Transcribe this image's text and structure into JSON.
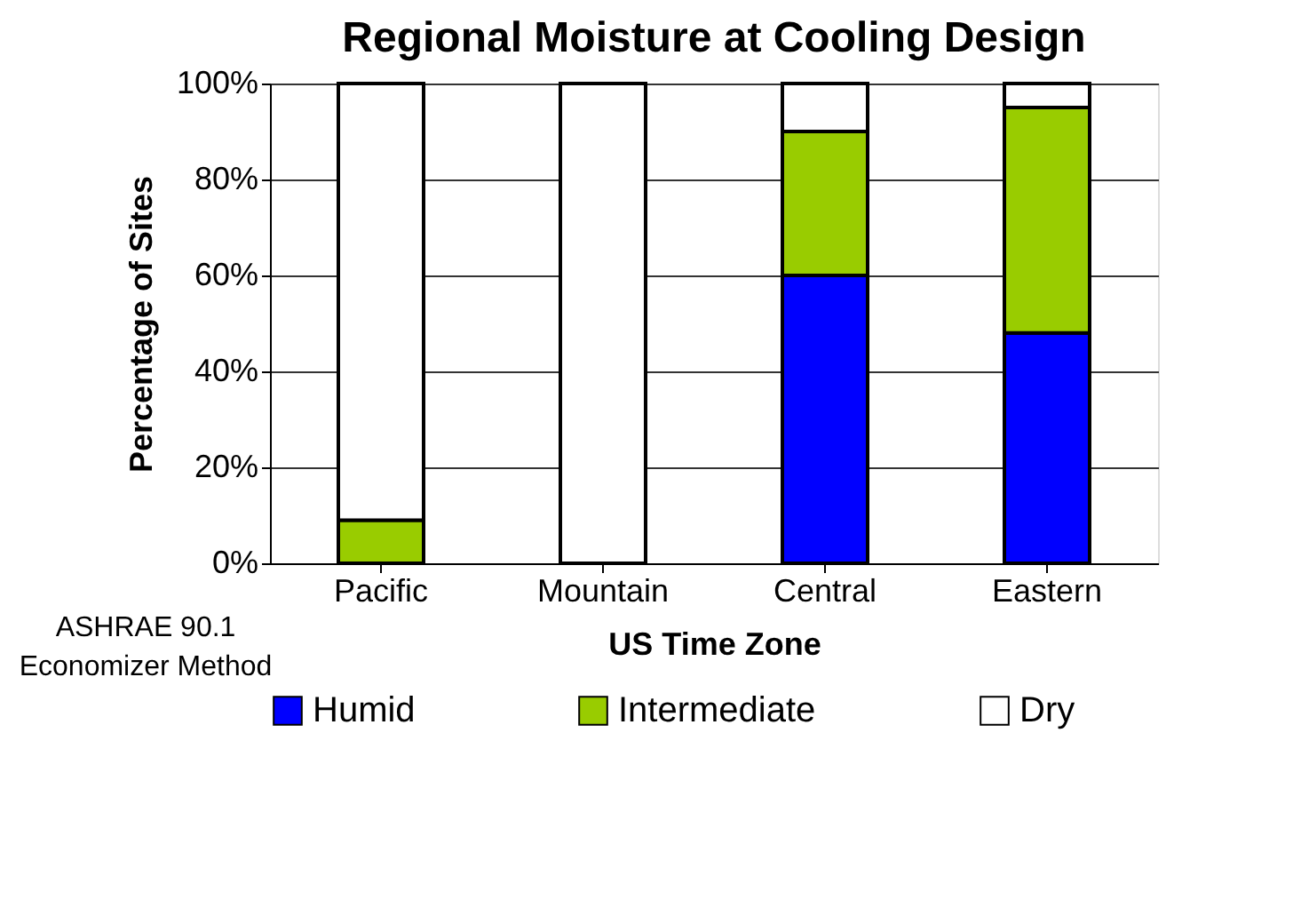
{
  "chart_data": {
    "type": "bar",
    "title": "Regional Moisture at Cooling Design",
    "xlabel": "US Time Zone",
    "ylabel": "Percentage of Sites",
    "categories": [
      "Pacific",
      "Mountain",
      "Central",
      "Eastern"
    ],
    "stacked": true,
    "series": [
      {
        "name": "Humid",
        "color": "#0000ff",
        "values": [
          0,
          0,
          60,
          48
        ]
      },
      {
        "name": "Intermediate",
        "color": "#99cc00",
        "values": [
          9,
          0,
          30,
          47
        ]
      },
      {
        "name": "Dry",
        "color": "#ffffff",
        "values": [
          91,
          100,
          10,
          5
        ]
      }
    ],
    "ylim": [
      0,
      100
    ],
    "yticks": [
      {
        "value": 0,
        "label": "0%"
      },
      {
        "value": 20,
        "label": "20%"
      },
      {
        "value": 40,
        "label": "40%"
      },
      {
        "value": 60,
        "label": "60%"
      },
      {
        "value": 80,
        "label": "80%"
      },
      {
        "value": 100,
        "label": "100%"
      }
    ],
    "grid": "y",
    "legend": "bottom",
    "annotations": [
      "ASHRAE 90.1\nEconomizer Method"
    ]
  }
}
